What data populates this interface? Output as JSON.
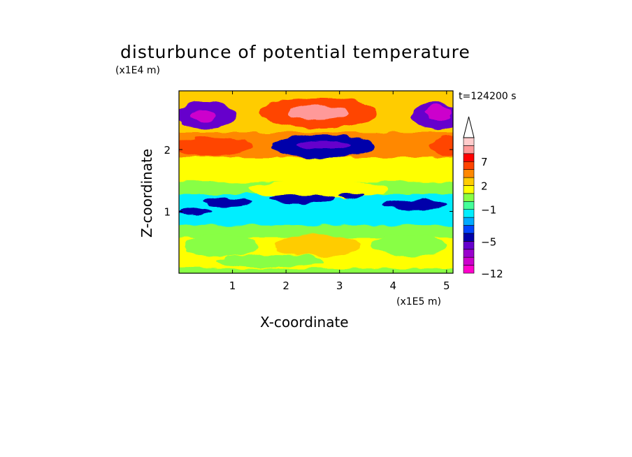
{
  "title": "disturbunce of potential temperature",
  "z_unit": "(x1E4 m)",
  "x_unit": "(x1E5 m)",
  "time_label": "t=124200 s",
  "chart_data": {
    "type": "heatmap",
    "title": "disturbunce of potential temperature",
    "xlabel": "X-coordinate",
    "ylabel": "Z-coordinate",
    "xlim": [
      0,
      5.12
    ],
    "ylim": [
      0,
      2.95
    ],
    "x_ticks": [
      1,
      2,
      3,
      4,
      5
    ],
    "y_ticks": [
      1,
      2
    ],
    "colorbar": {
      "labels": [
        "7",
        "2",
        "−1",
        "−5",
        "−12"
      ],
      "label_values": [
        7,
        2,
        -1,
        -5,
        -12
      ],
      "levels": [
        -12,
        -10,
        -8,
        -6,
        -5,
        -4,
        -3,
        -2,
        -1,
        0,
        1,
        2,
        3,
        5,
        7,
        9,
        11
      ],
      "colors": [
        "#ff00cc",
        "#cc00cc",
        "#9900cc",
        "#6600cc",
        "#0000aa",
        "#0044ff",
        "#00aaff",
        "#00eeff",
        "#44ff99",
        "#88ff44",
        "#ffff00",
        "#ffcc00",
        "#ff8800",
        "#ff4400",
        "#ff0000",
        "#ff9999",
        "#ffcccc"
      ],
      "extend": "max"
    },
    "bands": [
      {
        "z": [
          0.0,
          0.1
        ],
        "value": 0.5
      },
      {
        "z": [
          0.1,
          0.6
        ],
        "value": 1.5
      },
      {
        "z": [
          0.6,
          0.8
        ],
        "value": 0.3
      },
      {
        "z": [
          0.8,
          1.3
        ],
        "value": -1.5
      },
      {
        "z": [
          1.3,
          1.5
        ],
        "value": 0.3
      },
      {
        "z": [
          1.5,
          1.9
        ],
        "value": 1.5
      },
      {
        "z": [
          1.9,
          2.3
        ],
        "value": 4
      },
      {
        "z": [
          2.3,
          2.95
        ],
        "value": 2
      }
    ]
  }
}
